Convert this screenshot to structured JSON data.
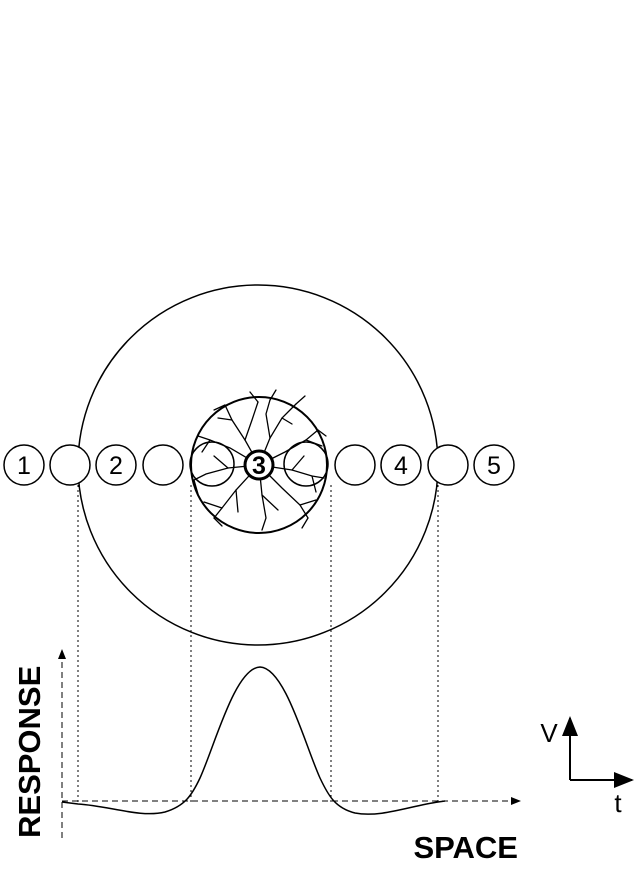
{
  "cells": {
    "labels": [
      "1",
      "2",
      "3",
      "4",
      "5"
    ]
  },
  "axes": {
    "y_label": "RESPONSE",
    "x_label": "SPACE"
  },
  "scale_bar": {
    "vertical_label": "V",
    "horizontal_label": "t"
  }
}
